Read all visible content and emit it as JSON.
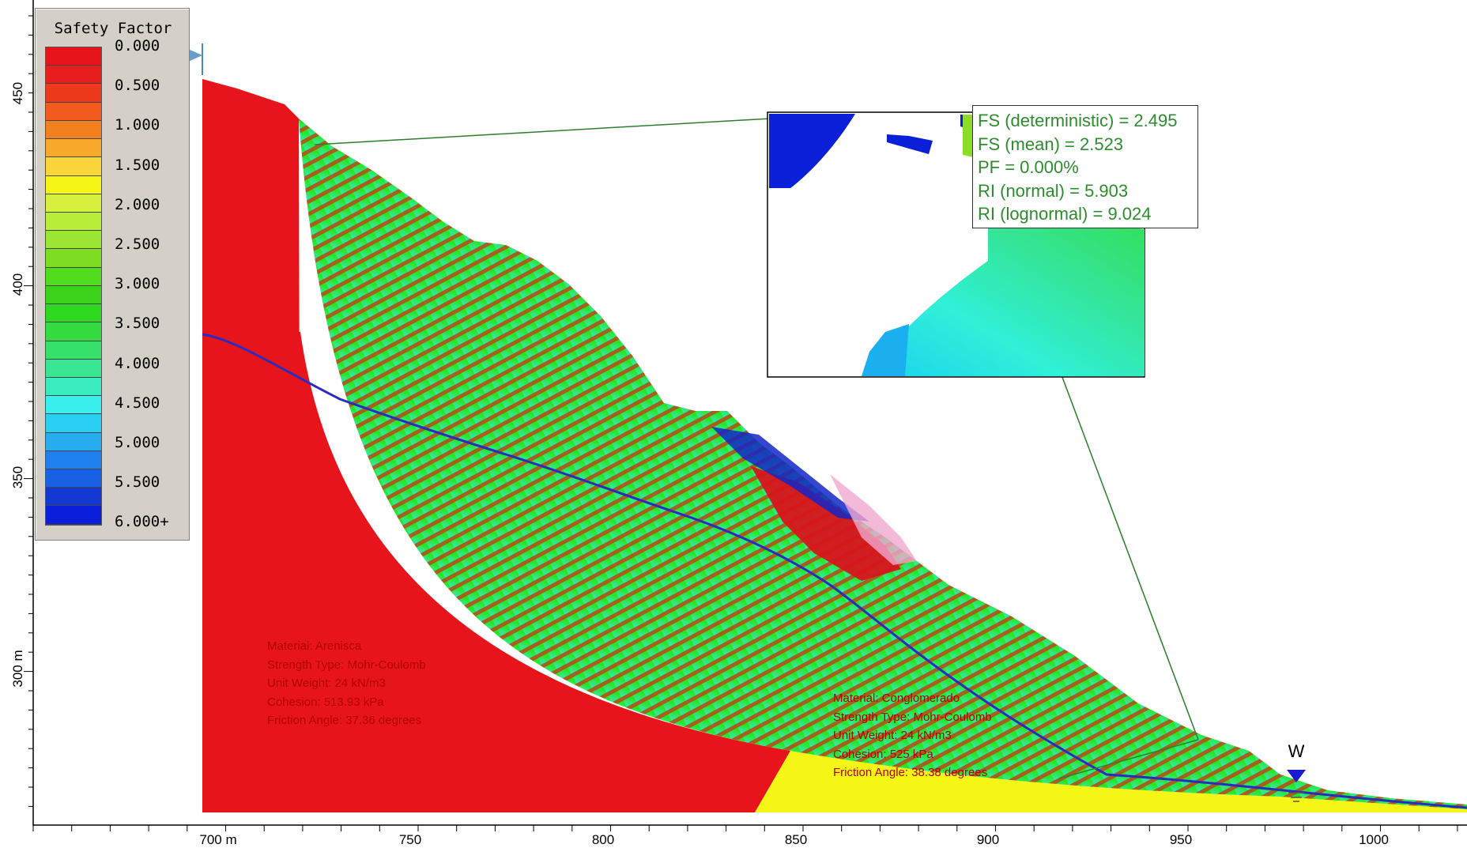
{
  "legend": {
    "title": "Safety Factor",
    "labels": [
      "0.000",
      "0.500",
      "1.000",
      "1.500",
      "2.000",
      "2.500",
      "3.000",
      "3.500",
      "4.000",
      "4.500",
      "5.000",
      "5.500",
      "6.000+"
    ],
    "colors": [
      "#e8141c",
      "#e61e1c",
      "#ee3a1c",
      "#f25a1e",
      "#f3801e",
      "#f8a82a",
      "#fad63a",
      "#f5f516",
      "#d6f040",
      "#b8ee3a",
      "#9ae632",
      "#7edc22",
      "#52dc1e",
      "#3ad21a",
      "#2ed81e",
      "#34dc42",
      "#36e06a",
      "#38e694",
      "#38ecc0",
      "#38f0ee",
      "#2ad0f4",
      "#28aef0",
      "#1e80ec",
      "#1860e4",
      "#1438d4",
      "#0a1edc"
    ]
  },
  "axes": {
    "x_labels": [
      "700 m",
      "750",
      "800",
      "850",
      "900",
      "950",
      "1000"
    ],
    "y_labels": [
      "450",
      "400",
      "350",
      "300 m"
    ]
  },
  "info": {
    "lines": [
      "FS (deterministic) = 2.495",
      "FS (mean) = 2.523",
      "PF = 0.000%",
      "RI (normal) = 5.903",
      "RI (lognormal) = 9.024"
    ]
  },
  "materials": [
    {
      "name": "arenisca",
      "lines": [
        "Material: Arenisca",
        "Strength Type: Mohr-Coulomb",
        "Unit Weight: 24 kN/m3",
        "Cohesion: 513.93 kPa",
        "Friction Angle: 37.36 degrees"
      ]
    },
    {
      "name": "conglomerado",
      "lines": [
        "Material: Conglomerado",
        "Strength Type: Mohr-Coulomb",
        "Unit Weight: 24 kN/m3",
        "Cohesion: 525 kPa",
        "Friction Angle: 38.38 degrees"
      ]
    }
  ],
  "water_marker": "W",
  "colors": {
    "arenisca": "#e8141c",
    "conglomerado": "#f5f516",
    "water_table": "#2b2bbf",
    "axis": "#000000"
  }
}
